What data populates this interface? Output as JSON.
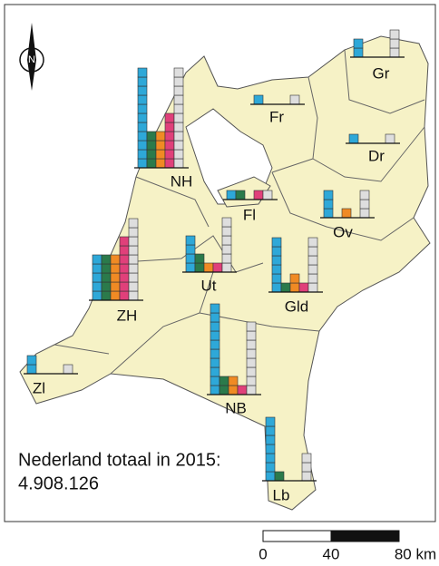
{
  "map": {
    "total_title": "Nederland totaal in 2015:",
    "total_value": "4.908.126",
    "category_colors": [
      "#2ea8d8",
      "#2b7a4b",
      "#f08a24",
      "#e0407a",
      "#dedede"
    ],
    "provinces": [
      {
        "label": "NH",
        "counts": [
          11,
          4,
          4,
          6,
          11
        ]
      },
      {
        "label": "Gr",
        "counts": [
          2,
          0,
          0,
          0,
          3
        ]
      },
      {
        "label": "Fr",
        "counts": [
          1,
          0,
          0,
          0,
          1
        ]
      },
      {
        "label": "Dr",
        "counts": [
          1,
          0,
          0,
          0,
          1
        ]
      },
      {
        "label": "Fl",
        "counts": [
          1,
          1,
          0,
          1,
          1
        ]
      },
      {
        "label": "Ov",
        "counts": [
          3,
          0,
          1,
          0,
          3
        ]
      },
      {
        "label": "Ut",
        "counts": [
          4,
          2,
          1,
          1,
          6
        ]
      },
      {
        "label": "Gld",
        "counts": [
          6,
          1,
          2,
          1,
          6
        ]
      },
      {
        "label": "ZH",
        "counts": [
          5,
          5,
          5,
          7,
          9
        ]
      },
      {
        "label": "Zl",
        "counts": [
          2,
          0,
          0,
          0,
          1
        ]
      },
      {
        "label": "NB",
        "counts": [
          10,
          2,
          2,
          1,
          8
        ]
      },
      {
        "label": "Lb",
        "counts": [
          7,
          1,
          0,
          0,
          3
        ]
      }
    ],
    "scale_bar": {
      "ticks": [
        "0",
        "40",
        "80 km"
      ]
    },
    "north_label": "N"
  }
}
